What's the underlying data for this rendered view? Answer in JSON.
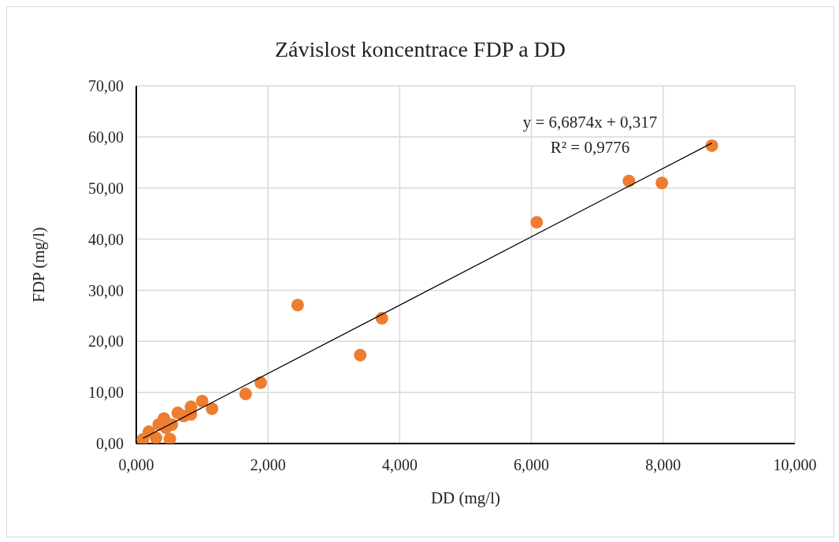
{
  "chart_data": {
    "type": "scatter",
    "title": "Závislost koncentrace FDP a DD",
    "xlabel": "DD (mg/l)",
    "ylabel": "FDP (mg/l)",
    "xlim": [
      0,
      10
    ],
    "xticks": [
      {
        "value": 0,
        "label": "0,000"
      },
      {
        "value": 2,
        "label": "2,000"
      },
      {
        "value": 4,
        "label": "4,000"
      },
      {
        "value": 6,
        "label": "6,000"
      },
      {
        "value": 8,
        "label": "8,000"
      },
      {
        "value": 10,
        "label": "10,000"
      }
    ],
    "ylim": [
      0,
      70
    ],
    "yticks": [
      {
        "value": 0,
        "label": "0,00"
      },
      {
        "value": 10,
        "label": "10,00"
      },
      {
        "value": 20,
        "label": "20,00"
      },
      {
        "value": 30,
        "label": "30,00"
      },
      {
        "value": 40,
        "label": "40,00"
      },
      {
        "value": 50,
        "label": "50,00"
      },
      {
        "value": 60,
        "label": "60,00"
      },
      {
        "value": 70,
        "label": "70,00"
      }
    ],
    "grid": true,
    "marker": "circle",
    "series": [
      {
        "color": "#ed7d31",
        "x": [
          8.74,
          7.48,
          7.98,
          6.08,
          3.73,
          3.4,
          2.45,
          1.89,
          1.66,
          1.15,
          1.0,
          0.83,
          0.83,
          0.1,
          0.19,
          0.25,
          0.3,
          0.34,
          0.42,
          0.45,
          0.51,
          0.54,
          0.63,
          0.72
        ],
        "values": [
          58.3,
          51.4,
          51.0,
          43.3,
          24.5,
          17.3,
          27.1,
          11.9,
          9.7,
          6.8,
          8.3,
          7.2,
          5.7,
          0.8,
          2.3,
          null,
          1.1,
          3.7,
          4.9,
          3.1,
          0.9,
          3.7,
          6.0,
          5.4
        ]
      },
      {
        "type": "line",
        "color": "#000000",
        "marker": "none",
        "line_style": "solid",
        "x": [
          0.1,
          8.74
        ],
        "values": [
          1.0,
          58.8
        ]
      }
    ],
    "annotations": [
      "y = 6,6874x + 0,317",
      "R² = 0,9776"
    ]
  }
}
